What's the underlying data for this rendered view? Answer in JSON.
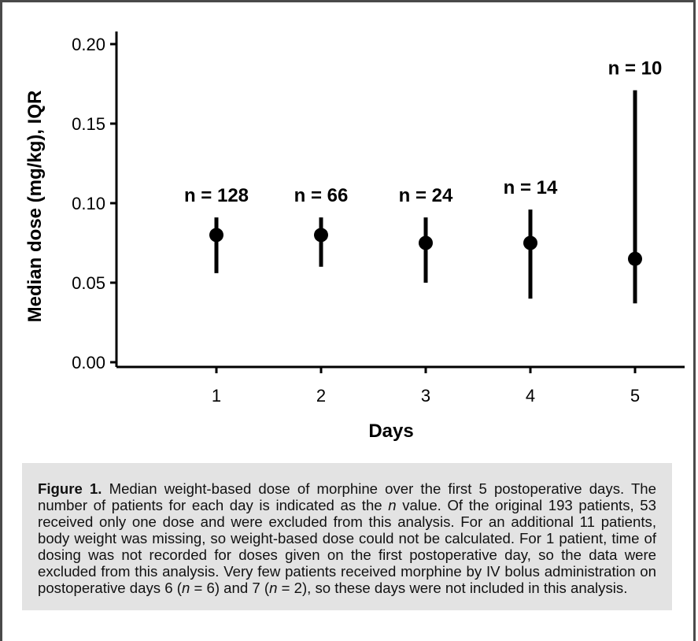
{
  "chart_data": {
    "type": "scatter",
    "xlabel": "Days",
    "ylabel": "Median dose (mg/kg), IQR",
    "x_tick_labels": [
      "1",
      "2",
      "3",
      "4",
      "5"
    ],
    "y_tick_labels": [
      "0.00",
      "0.05",
      "0.10",
      "0.15",
      "0.20"
    ],
    "ylim": [
      0,
      0.21
    ],
    "grid": false,
    "points": [
      {
        "day": "1",
        "median": 0.08,
        "q1": 0.056,
        "q3": 0.091,
        "n_label": "n = 128"
      },
      {
        "day": "2",
        "median": 0.08,
        "q1": 0.06,
        "q3": 0.091,
        "n_label": "n = 66"
      },
      {
        "day": "3",
        "median": 0.075,
        "q1": 0.05,
        "q3": 0.091,
        "n_label": "n = 24"
      },
      {
        "day": "4",
        "median": 0.075,
        "q1": 0.04,
        "q3": 0.096,
        "n_label": "n = 14"
      },
      {
        "day": "5",
        "median": 0.065,
        "q1": 0.037,
        "q3": 0.171,
        "n_label": "n = 10"
      }
    ]
  },
  "caption": {
    "figure_label": "Figure 1.",
    "part1": " Median weight-based dose of morphine over the first 5 postoperative days. The number of patients for each day is indicated as the ",
    "n1": "n",
    "part2": " value. Of the original 193 patients, 53 received only one dose and were excluded from this analysis. For an additional 11 patients, body weight was missing, so weight-based dose could not be calculated. For 1 patient, time of dosing was not recorded for doses given on the first postoperative day, so the data were excluded from this analysis. Very few patients received morphine by IV bolus administration on postoperative days 6 (",
    "n2": "n",
    "part3": " = 6) and 7 (",
    "n3": "n",
    "part4": " = 2), so these days were not included in this analysis."
  }
}
